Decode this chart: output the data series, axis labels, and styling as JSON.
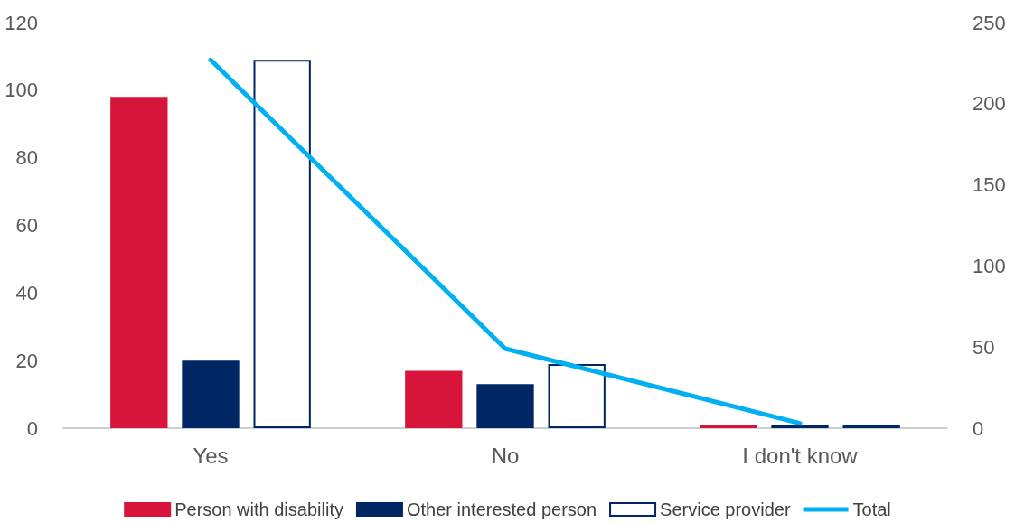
{
  "chart_data": {
    "type": "bar",
    "categories": [
      "Yes",
      "No",
      "I don't know"
    ],
    "series": [
      {
        "name": "Person with disability",
        "color": "#d7153a",
        "values": [
          98,
          17,
          1
        ]
      },
      {
        "name": "Other interested person",
        "color": "#002664",
        "values": [
          20,
          13,
          1
        ]
      },
      {
        "name": "Service provider",
        "color": "#ffffff",
        "values": [
          109,
          19,
          1
        ]
      },
      {
        "name": "Total",
        "type": "line",
        "axis": "y2",
        "color": "#00b0f0",
        "values": [
          227,
          49,
          3
        ]
      }
    ],
    "ylim": [
      0,
      120
    ],
    "yticks": [
      0,
      20,
      40,
      60,
      80,
      100,
      120
    ],
    "y2lim": [
      0,
      250
    ],
    "y2ticks": [
      0,
      50,
      100,
      150,
      200,
      250
    ],
    "grid": false,
    "legend": "bottom",
    "marker": "none"
  }
}
